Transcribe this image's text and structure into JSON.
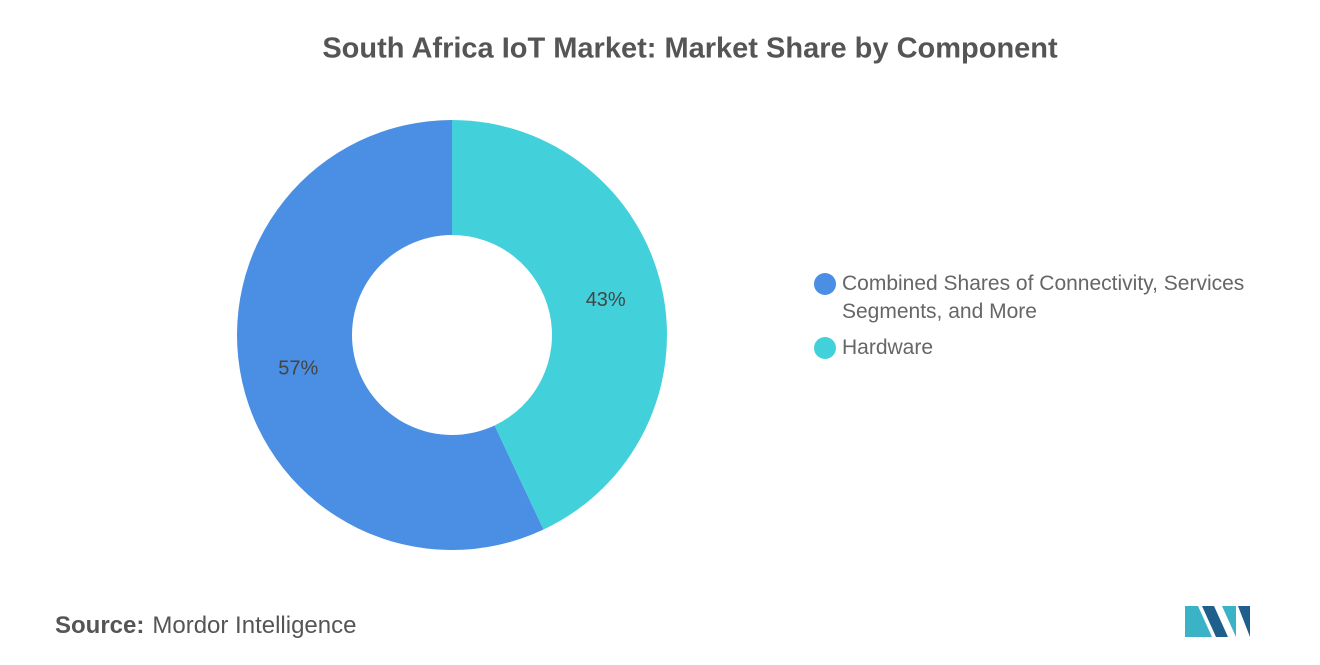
{
  "chart_data": {
    "type": "donut",
    "title": "South Africa IoT Market: Market Share by Component",
    "categories": [
      "Combined Shares of Connectivity, Services Segments, and More",
      "Hardware"
    ],
    "values": [
      57,
      43
    ],
    "value_labels": [
      "57%",
      "43%"
    ],
    "colors": [
      "#4a8fe3",
      "#42d1db"
    ],
    "legend": "right"
  },
  "footer": {
    "source_label": "Source:",
    "source": "Mordor Intelligence"
  }
}
